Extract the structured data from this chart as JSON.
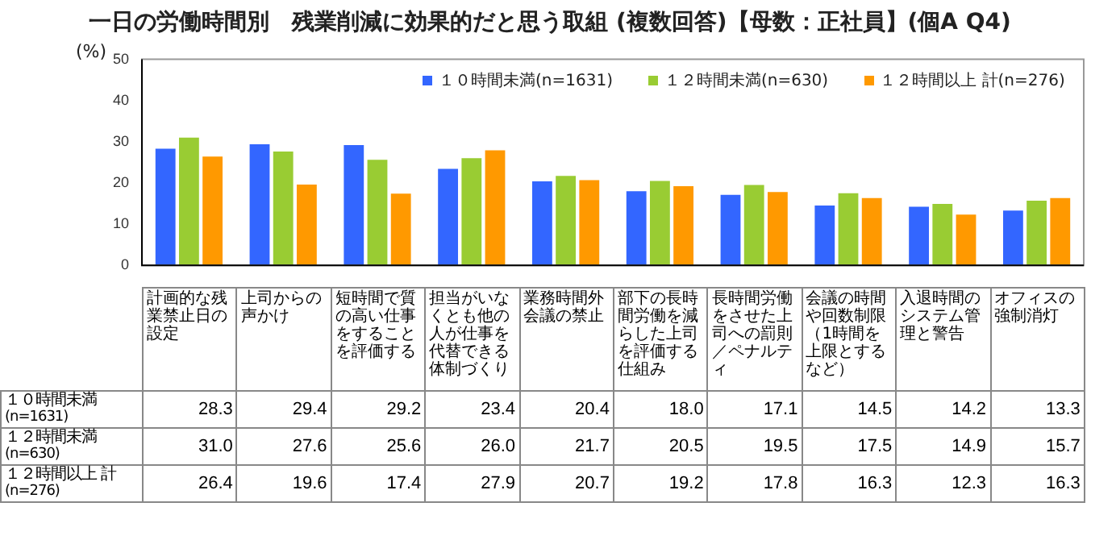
{
  "chart_data": {
    "type": "bar",
    "title": "一日の労働時間別　残業削減に効果的だと思う取組 (複数回答)【母数：正社員】(個A Q4)",
    "ylabel": "(%)",
    "categories": [
      "計画的な残業禁止日の設定",
      "上司からの声かけ",
      "短時間で質の高い仕事をすることを評価する",
      "担当がいなくとも他の人が仕事を代替できる体制づくり",
      "業務時間外会議の禁止",
      "部下の長時間労働を減らした上司を評価する仕組み",
      "長時間労働をさせた上司への罰則／ペナルティ",
      "会議の時間や回数制限（1時間を上限とするなど）",
      "入退時間のシステム管理と警告",
      "オフィスの強制消灯"
    ],
    "series": [
      {
        "name": "１０時間未満(n=1631)",
        "color": "#3366ff",
        "values": [
          28.3,
          29.4,
          29.2,
          23.4,
          20.4,
          18.0,
          17.1,
          14.5,
          14.2,
          13.3
        ],
        "value_labels": [
          "28.3",
          "29.4",
          "29.2",
          "23.4",
          "20.4",
          "18.0",
          "17.1",
          "14.5",
          "14.2",
          "13.3"
        ]
      },
      {
        "name": "１２時間未満(n=630)",
        "color": "#99cc33",
        "values": [
          31.0,
          27.6,
          25.6,
          26.0,
          21.7,
          20.5,
          19.5,
          17.5,
          14.9,
          15.7
        ],
        "value_labels": [
          "31.0",
          "27.6",
          "25.6",
          "26.0",
          "21.7",
          "20.5",
          "19.5",
          "17.5",
          "14.9",
          "15.7"
        ]
      },
      {
        "name": "１２時間以上 計(n=276)",
        "color": "#ff9900",
        "values": [
          26.4,
          19.6,
          17.4,
          27.9,
          20.7,
          19.2,
          17.8,
          16.3,
          12.3,
          16.3
        ],
        "value_labels": [
          "26.4",
          "19.6",
          "17.4",
          "27.9",
          "20.7",
          "19.2",
          "17.8",
          "16.3",
          "12.3",
          "16.3"
        ]
      }
    ],
    "ylim": [
      0,
      50
    ],
    "yticks": [
      0,
      10,
      20,
      30,
      40,
      50
    ],
    "grid": false,
    "legend": "top right"
  }
}
